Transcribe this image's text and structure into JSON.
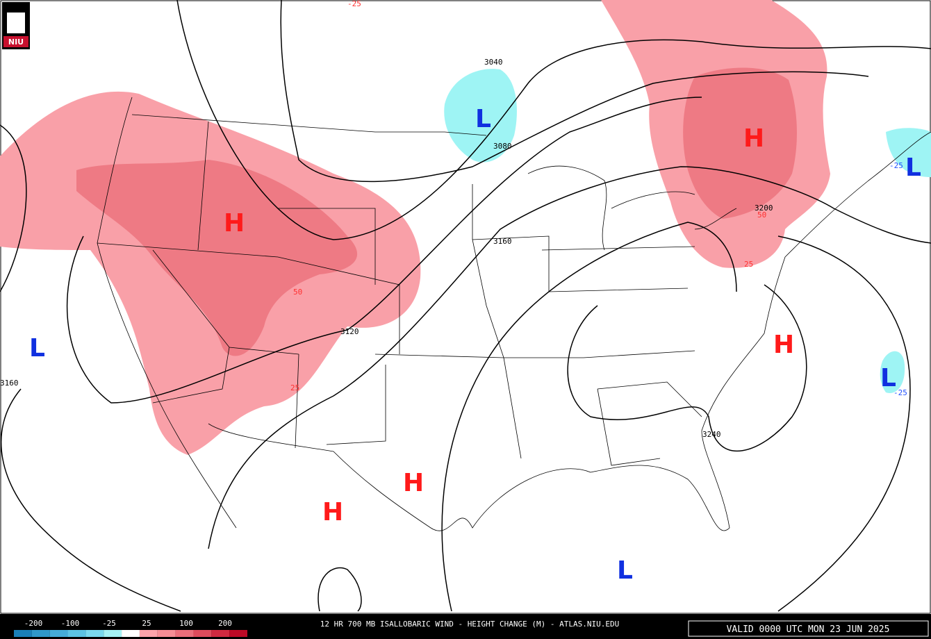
{
  "logo": "NIU",
  "centers": [
    "H",
    "H",
    "H",
    "H",
    "H",
    "L",
    "L",
    "L",
    "L",
    "L"
  ],
  "contour_labels": [
    "3040",
    "3080",
    "3160",
    "3120",
    "3200",
    "3240",
    "3160"
  ],
  "change_labels": [
    "-25",
    "50",
    "25",
    "50",
    "25",
    "-25",
    "-25"
  ],
  "legend": {
    "labels": [
      "-200",
      "-100",
      "-25",
      "25",
      "100",
      "200"
    ],
    "colors": [
      "#1a7fb8",
      "#2f97c9",
      "#45acd8",
      "#5cc3e3",
      "#7ad9ee",
      "#a6f2f5",
      "#ffffff",
      "#fca3aa",
      "#f58d95",
      "#ea6e7a",
      "#de4c5c",
      "#cf2a40",
      "#bd0a26"
    ]
  },
  "title": "12 HR 700 MB ISALLOBARIC WIND - HEIGHT CHANGE (M) - ATLAS.NIU.EDU",
  "valid": "VALID 0000 UTC MON 23 JUN 2025"
}
